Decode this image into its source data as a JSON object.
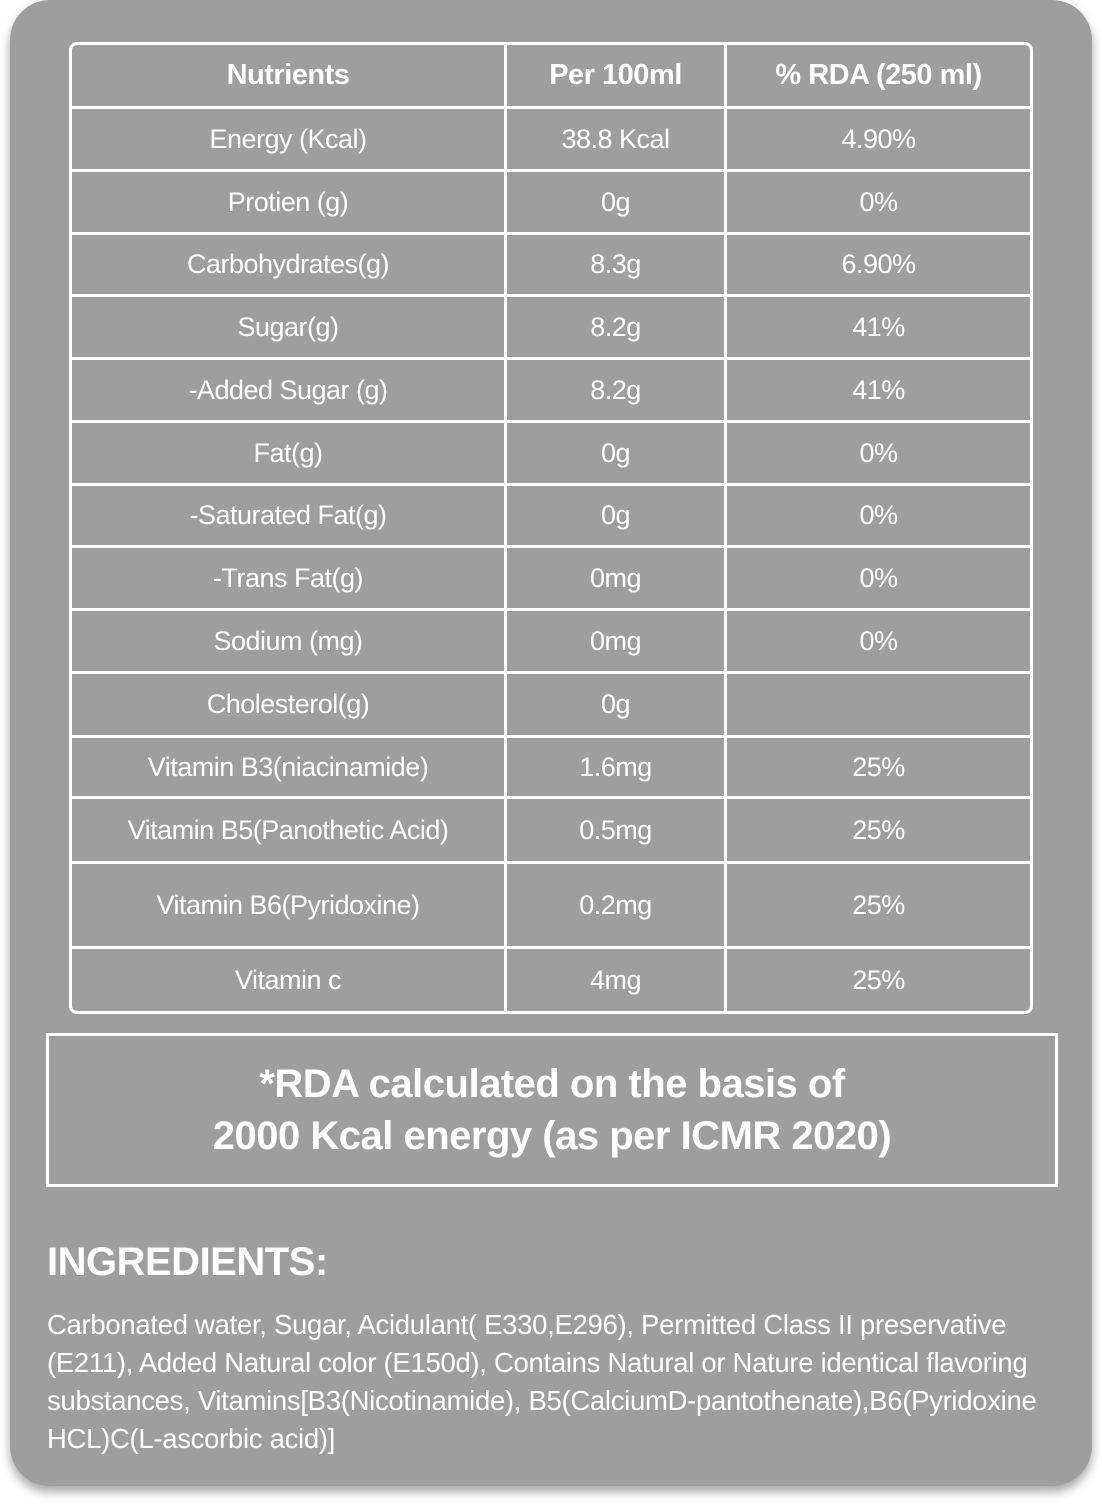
{
  "colors": {
    "card_background": "#9e9e9e",
    "text": "#ffffff",
    "border": "#ffffff",
    "page_background": "#ffffff"
  },
  "nutrition_table": {
    "headers": [
      "Nutrients",
      "Per 100ml",
      "% RDA (250 ml)"
    ],
    "rows": [
      {
        "nutrient": "Energy (Kcal)",
        "per_100ml": "38.8 Kcal",
        "rda": "4.90%"
      },
      {
        "nutrient": "Protien (g)",
        "per_100ml": "0g",
        "rda": "0%"
      },
      {
        "nutrient": "Carbohydrates(g)",
        "per_100ml": "8.3g",
        "rda": "6.90%"
      },
      {
        "nutrient": "Sugar(g)",
        "per_100ml": "8.2g",
        "rda": "41%"
      },
      {
        "nutrient": "-Added Sugar (g)",
        "per_100ml": "8.2g",
        "rda": "41%"
      },
      {
        "nutrient": "Fat(g)",
        "per_100ml": "0g",
        "rda": "0%"
      },
      {
        "nutrient": "-Saturated Fat(g)",
        "per_100ml": "0g",
        "rda": "0%"
      },
      {
        "nutrient": "-Trans Fat(g)",
        "per_100ml": "0mg",
        "rda": "0%"
      },
      {
        "nutrient": "Sodium (mg)",
        "per_100ml": "0mg",
        "rda": "0%"
      },
      {
        "nutrient": "Cholesterol(g)",
        "per_100ml": "0g",
        "rda": ""
      },
      {
        "nutrient": "Vitamin B3(niacinamide)",
        "per_100ml": "1.6mg",
        "rda": "25%"
      },
      {
        "nutrient": "Vitamin B5(Panothetic Acid)",
        "per_100ml": "0.5mg",
        "rda": "25%"
      },
      {
        "nutrient": "Vitamin B6(Pyridoxine)",
        "per_100ml": "0.2mg",
        "rda": "25%"
      },
      {
        "nutrient": "Vitamin c",
        "per_100ml": "4mg",
        "rda": "25%"
      }
    ]
  },
  "rda_note": {
    "line1": "*RDA calculated on the basis of",
    "line2": "2000 Kcal energy  (as per ICMR 2020)"
  },
  "ingredients": {
    "title": "INGREDIENTS:",
    "text": "Carbonated water, Sugar, Acidulant( E330,E296), Permitted Class II preservative (E211), Added Natural color (E150d), Contains Natural or Nature identical flavoring substances, Vitamins[B3(Nicotinamide), B5(CalciumD-pantothenate),B6(Pyridoxine HCL)C(L-ascorbic acid)]"
  }
}
